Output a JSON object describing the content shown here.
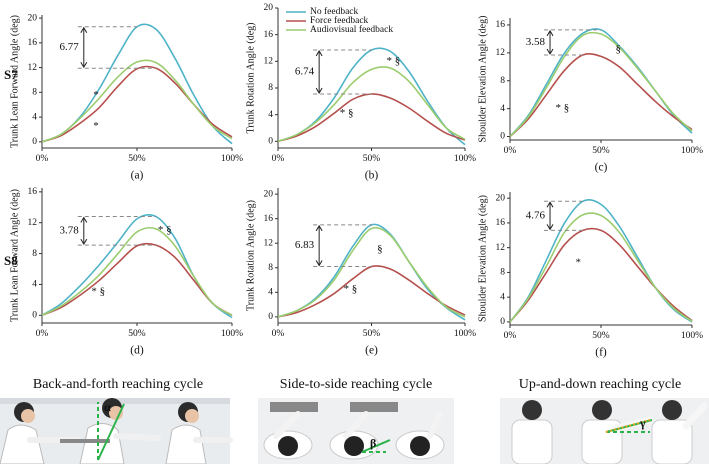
{
  "row_labels": [
    "S7",
    "S8"
  ],
  "captions": [
    "Back-and-forth reaching cycle",
    "Side-to-side reaching cycle",
    "Up-and-down reaching cycle"
  ],
  "angle_labels": [
    "α",
    "β",
    "γ"
  ],
  "chart_data": [
    {
      "type": "line",
      "panel_label": "(a)",
      "ylabel": "Trunk Lean Forward Angle (deg)",
      "x": [
        0,
        10,
        20,
        30,
        40,
        50,
        60,
        70,
        80,
        90,
        100
      ],
      "xlim": [
        0,
        100
      ],
      "xticks": [
        {
          "value": 0,
          "label": "0%"
        },
        {
          "value": 50,
          "label": "50%"
        },
        {
          "value": 100,
          "label": "100%"
        }
      ],
      "ylim": [
        -1,
        20.5
      ],
      "yticks": [
        0,
        4,
        8,
        12,
        16,
        20
      ],
      "series": [
        {
          "color": "#4fb3c8",
          "values": [
            0,
            1.2,
            4,
            8.5,
            14,
            18.6,
            18.2,
            13.5,
            7.5,
            2.5,
            -0.3
          ]
        },
        {
          "color": "#b5504d",
          "values": [
            0,
            1,
            3,
            5.5,
            9,
            11.8,
            11.9,
            9.5,
            6,
            2.8,
            0.8
          ]
        },
        {
          "color": "#9bcc6e",
          "values": [
            0,
            1.2,
            3.8,
            7,
            10.5,
            12.9,
            12.8,
            10,
            6,
            2.5,
            0.5
          ]
        }
      ],
      "difference_label": "6.77",
      "markers": [
        "*",
        "*"
      ]
    },
    {
      "type": "line",
      "panel_label": "(b)",
      "ylabel": "Trunk Rotation Angle (deg)",
      "x": [
        0,
        10,
        20,
        30,
        40,
        50,
        60,
        70,
        80,
        90,
        100
      ],
      "xlim": [
        0,
        100
      ],
      "xticks": [
        {
          "value": 0,
          "label": "0%"
        },
        {
          "value": 50,
          "label": "50%"
        },
        {
          "value": 100,
          "label": "100%"
        }
      ],
      "ylim": [
        -1,
        20
      ],
      "yticks": [
        0,
        4,
        8,
        12,
        16,
        20
      ],
      "legend": "upper left",
      "series": [
        {
          "name": "No feedback",
          "color": "#4fb3c8",
          "values": [
            0,
            1,
            3,
            6.5,
            11,
            13.7,
            13.5,
            10.5,
            6,
            2,
            -0.5
          ]
        },
        {
          "name": "Force feedback",
          "color": "#b5504d",
          "values": [
            0,
            0.8,
            2.2,
            4.2,
            6.3,
            7.1,
            6.5,
            5,
            3,
            1.2,
            0.2
          ]
        },
        {
          "name": "Audiovisual feedback",
          "color": "#9bcc6e",
          "values": [
            0,
            1,
            2.8,
            5.5,
            8.8,
            10.8,
            11,
            9,
            5.5,
            2,
            0.3
          ]
        }
      ],
      "difference_label": "6.74",
      "markers": [
        "* §",
        "* §"
      ]
    },
    {
      "type": "line",
      "panel_label": "(c)",
      "ylabel": "Shoulder Elevation Angle (deg)",
      "x": [
        0,
        10,
        20,
        30,
        40,
        50,
        60,
        70,
        80,
        90,
        100
      ],
      "xlim": [
        0,
        100
      ],
      "xticks": [
        {
          "value": 0,
          "label": "0%"
        },
        {
          "value": 50,
          "label": "50%"
        },
        {
          "value": 100,
          "label": "100%"
        }
      ],
      "ylim": [
        -0.5,
        17
      ],
      "yticks": [
        0,
        4,
        8,
        12,
        16
      ],
      "series": [
        {
          "color": "#4fb3c8",
          "values": [
            0,
            3,
            7.5,
            12,
            14.8,
            15.3,
            13,
            10,
            6.5,
            3,
            0.5
          ]
        },
        {
          "color": "#b5504d",
          "values": [
            0,
            2.5,
            6,
            9.5,
            11.7,
            11.5,
            10,
            7.5,
            5,
            2.8,
            1
          ]
        },
        {
          "color": "#9bcc6e",
          "values": [
            0,
            2.8,
            7,
            11.5,
            14.5,
            14.7,
            12.8,
            9.8,
            6.5,
            3.2,
            0.8
          ]
        }
      ],
      "difference_label": "3.58",
      "markers": [
        "§",
        "* §"
      ]
    },
    {
      "type": "line",
      "panel_label": "(d)",
      "ylabel": "Trunk Lean Forward Angle (deg)",
      "x": [
        0,
        10,
        20,
        30,
        40,
        50,
        60,
        70,
        80,
        90,
        100
      ],
      "xlim": [
        0,
        100
      ],
      "xticks": [
        {
          "value": 0,
          "label": "0%"
        },
        {
          "value": 50,
          "label": "50%"
        },
        {
          "value": 100,
          "label": "100%"
        }
      ],
      "ylim": [
        -1,
        16.5
      ],
      "yticks": [
        0,
        4,
        8,
        12,
        16
      ],
      "series": [
        {
          "color": "#4fb3c8",
          "values": [
            0,
            1.5,
            3.8,
            6.5,
            9.5,
            12.5,
            12.8,
            10,
            5,
            1.5,
            -0.3
          ]
        },
        {
          "color": "#b5504d",
          "values": [
            0,
            1,
            2.6,
            4.5,
            6.8,
            9,
            9.1,
            7.5,
            4.5,
            1.5,
            0
          ]
        },
        {
          "color": "#9bcc6e",
          "values": [
            0,
            1.2,
            3,
            5.2,
            8,
            10.8,
            11.2,
            9,
            5,
            1.5,
            0
          ]
        }
      ],
      "difference_label": "3.78",
      "markers": [
        "* §",
        "* §"
      ]
    },
    {
      "type": "line",
      "panel_label": "(e)",
      "ylabel": "Trunk Rotation Angle (deg)",
      "x": [
        0,
        10,
        20,
        30,
        40,
        50,
        60,
        70,
        80,
        90,
        100
      ],
      "xlim": [
        0,
        100
      ],
      "xticks": [
        {
          "value": 0,
          "label": "0%"
        },
        {
          "value": 50,
          "label": "50%"
        },
        {
          "value": 100,
          "label": "100%"
        }
      ],
      "ylim": [
        -1,
        21
      ],
      "yticks": [
        0,
        4,
        8,
        12,
        16,
        20
      ],
      "series": [
        {
          "color": "#4fb3c8",
          "values": [
            0,
            1,
            3,
            6.5,
            11.5,
            15,
            13.5,
            9,
            4.5,
            1.5,
            -0.5
          ]
        },
        {
          "color": "#b5504d",
          "values": [
            0,
            0.7,
            2,
            3.8,
            6.2,
            8.2,
            7.8,
            6,
            3.8,
            1.8,
            0.3
          ]
        },
        {
          "color": "#9bcc6e",
          "values": [
            0,
            1,
            2.8,
            6,
            10.8,
            14.4,
            13.3,
            9,
            4.8,
            1.6,
            0
          ]
        }
      ],
      "difference_label": "6.83",
      "markers": [
        "§",
        "* §"
      ]
    },
    {
      "type": "line",
      "panel_label": "(f)",
      "ylabel": "Shoulder Elevation Angle (deg)",
      "x": [
        0,
        10,
        20,
        30,
        40,
        50,
        60,
        70,
        80,
        90,
        100
      ],
      "xlim": [
        0,
        100
      ],
      "xticks": [
        {
          "value": 0,
          "label": "0%"
        },
        {
          "value": 50,
          "label": "50%"
        },
        {
          "value": 100,
          "label": "100%"
        }
      ],
      "ylim": [
        -0.5,
        21
      ],
      "yticks": [
        0,
        4,
        8,
        12,
        16,
        20
      ],
      "series": [
        {
          "color": "#4fb3c8",
          "values": [
            0,
            4,
            10,
            16,
            19.5,
            19,
            15.5,
            10.5,
            5.5,
            2,
            0
          ]
        },
        {
          "color": "#b5504d",
          "values": [
            0,
            3.5,
            8,
            12.5,
            14.8,
            14.8,
            12.5,
            9,
            5.5,
            2.5,
            0.2
          ]
        },
        {
          "color": "#9bcc6e",
          "values": [
            0,
            3.8,
            9,
            14.5,
            17.3,
            17.2,
            14.5,
            10,
            5.5,
            2.2,
            0.1
          ]
        }
      ],
      "difference_label": "4.76",
      "markers": [
        "*"
      ]
    }
  ]
}
